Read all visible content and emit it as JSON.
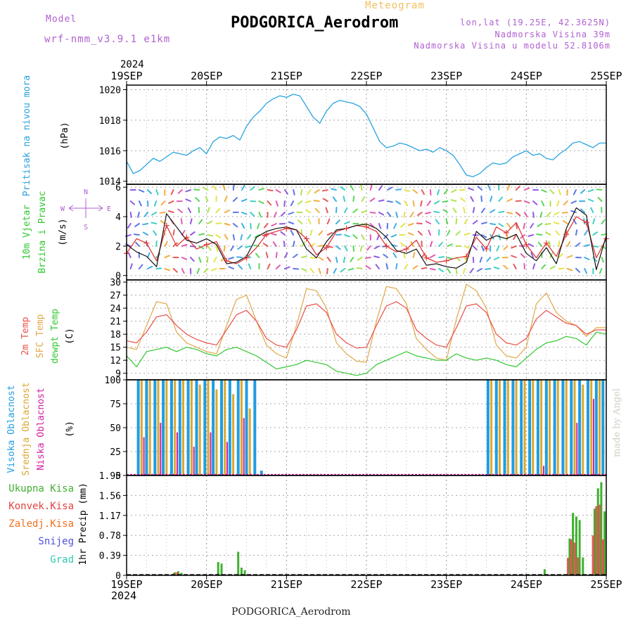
{
  "header": {
    "model_label": "Model",
    "model_name": "wrf-nmm_v3.9.1 e1km",
    "meteogram_label": "Meteogram",
    "station_title": "PODGORICA_Aerodrom",
    "lonlat": "lon,lat (19.25E, 42.3625N)",
    "elevation": "Nadmorska Visina 39m",
    "model_elevation": "Nadmorska Visina u modelu 52.8106m",
    "year": "2024",
    "credit": "made by Angel"
  },
  "footer": {
    "station": "PODGORICA_Aerodrom",
    "year": "2024"
  },
  "colors": {
    "pressure": "#29a3e0",
    "wind_speed": "#111111",
    "gust": "#e03a3a",
    "t2m": "#e8504a",
    "sfc": "#e0a848",
    "dew": "#30c830",
    "high_cloud": "#1f9de0",
    "mid_cloud": "#d9a830",
    "low_cloud": "#d020a0",
    "total_precip": "#40b030",
    "conv_precip": "#e04040",
    "frozen_precip": "#f07020",
    "snow": "#5050e0",
    "graupel": "#30c8b0"
  },
  "chart_data": [
    {
      "type": "line",
      "id": "pressure",
      "ylabel_lines": [
        "Pritisak na nivou mora",
        "(hPa)"
      ],
      "ylim": [
        1013.8,
        1020.3
      ],
      "yticks": [
        "1014",
        "1016",
        "1018",
        "1020"
      ],
      "xlim": [
        0,
        144
      ],
      "x_ticks": [
        "19SEP",
        "20SEP",
        "21SEP",
        "22SEP",
        "23SEP",
        "24SEP",
        "25SEP"
      ],
      "grid": true,
      "series": [
        {
          "x": [
            0,
            2,
            4,
            6,
            8,
            10,
            12,
            14,
            16,
            18,
            20,
            22,
            24,
            26,
            28,
            30,
            32,
            34,
            36,
            38,
            40,
            42,
            44,
            46,
            48,
            50,
            52,
            54,
            56,
            58,
            60,
            62,
            64,
            66,
            68,
            70,
            72,
            74,
            76,
            78,
            80,
            82,
            84,
            86,
            88,
            90,
            92,
            94,
            96,
            98,
            100,
            102,
            104,
            106,
            108,
            110,
            112,
            114,
            116,
            118,
            120,
            122,
            124,
            126,
            128,
            130,
            132,
            134,
            136,
            138,
            140,
            142,
            144
          ],
          "y": [
            1015.3,
            1014.5,
            1014.7,
            1015.1,
            1015.5,
            1015.3,
            1015.6,
            1015.9,
            1015.8,
            1015.7,
            1016.0,
            1016.2,
            1015.8,
            1016.6,
            1016.9,
            1016.8,
            1017.0,
            1016.7,
            1017.6,
            1018.2,
            1018.6,
            1019.1,
            1019.4,
            1019.6,
            1019.5,
            1019.7,
            1019.6,
            1018.9,
            1018.2,
            1017.8,
            1018.6,
            1019.1,
            1019.3,
            1019.2,
            1019.1,
            1018.9,
            1018.4,
            1017.5,
            1016.6,
            1016.2,
            1016.3,
            1016.5,
            1016.4,
            1016.2,
            1016.0,
            1016.1,
            1015.9,
            1016.2,
            1016.0,
            1015.7,
            1015.1,
            1014.4,
            1014.3,
            1014.5,
            1014.9,
            1015.2,
            1015.1,
            1015.2,
            1015.6,
            1015.8,
            1016.0,
            1015.7,
            1015.8,
            1015.5,
            1015.4,
            1015.8,
            1016.1,
            1016.5,
            1016.6,
            1016.4,
            1016.2,
            1016.5,
            1016.5
          ]
        }
      ]
    },
    {
      "type": "line",
      "id": "wind",
      "ylabel_lines": [
        "10m Vjetar",
        "Brzina i Pravac",
        "(m/s)"
      ],
      "compass": [
        "N",
        "W",
        "E",
        "S"
      ],
      "ylim": [
        -0.3,
        6.2
      ],
      "yticks": [
        "0",
        "2",
        "4",
        "6"
      ],
      "xlim": [
        0,
        144
      ],
      "grid": true,
      "series": [
        {
          "name": "",
          "x": [
            0,
            3,
            6,
            9,
            12,
            15,
            18,
            21,
            24,
            27,
            30,
            33,
            36,
            39,
            42,
            45,
            48,
            51,
            54,
            57,
            60,
            63,
            66,
            69,
            72,
            75,
            78,
            81,
            84,
            87,
            90,
            93,
            96,
            99,
            102,
            105,
            108,
            111,
            114,
            117,
            120,
            123,
            126,
            129,
            132,
            135,
            138,
            141,
            144
          ],
          "y": [
            1.5,
            2.5,
            2.2,
            1.0,
            3.4,
            2.0,
            2.6,
            1.8,
            2.1,
            2.3,
            1.0,
            0.8,
            1.2,
            1.9,
            2.8,
            3.0,
            3.2,
            3.1,
            2.5,
            1.4,
            1.9,
            3.0,
            3.2,
            3.4,
            3.3,
            3.0,
            2.0,
            1.6,
            1.8,
            2.4,
            1.2,
            0.9,
            1.0,
            1.2,
            1.3,
            2.6,
            1.8,
            3.3,
            2.9,
            3.6,
            2.1,
            1.2,
            2.2,
            1.3,
            2.8,
            4.0,
            3.6,
            1.2,
            2.5
          ]
        },
        {
          "name": "",
          "x": [
            0,
            3,
            6,
            9,
            12,
            15,
            18,
            21,
            24,
            27,
            30,
            33,
            36,
            39,
            42,
            45,
            48,
            51,
            54,
            57,
            60,
            63,
            66,
            69,
            72,
            75,
            78,
            81,
            84,
            87,
            90,
            93,
            96,
            99,
            102,
            105,
            108,
            111,
            114,
            117,
            120,
            123,
            126,
            129,
            132,
            135,
            138,
            141,
            144
          ],
          "y": [
            2.1,
            1.6,
            1.3,
            0.6,
            4.2,
            3.3,
            2.4,
            2.2,
            2.5,
            2.1,
            0.8,
            0.9,
            1.3,
            2.6,
            3.0,
            3.2,
            3.3,
            3.1,
            1.8,
            1.2,
            2.3,
            3.1,
            3.2,
            3.4,
            3.5,
            3.2,
            2.6,
            1.7,
            1.5,
            1.8,
            0.7,
            0.8,
            0.6,
            0.5,
            0.9,
            3.0,
            2.4,
            2.7,
            2.5,
            2.8,
            1.5,
            1.0,
            1.9,
            0.8,
            3.2,
            4.6,
            4.1,
            0.4,
            2.7
          ]
        }
      ]
    },
    {
      "type": "line",
      "id": "temperature",
      "ylabel_lines": [
        "2m Temp",
        "SFC Temp",
        "dewpt Temp",
        "(C)"
      ],
      "ylim": [
        7.5,
        30.5
      ],
      "yticks": [
        "9",
        "12",
        "15",
        "18",
        "21",
        "24",
        "27",
        "30"
      ],
      "xlim": [
        0,
        144
      ],
      "grid": true,
      "series": [
        {
          "name": "2m Temp",
          "x": [
            0,
            3,
            6,
            9,
            12,
            15,
            18,
            21,
            24,
            27,
            30,
            33,
            36,
            39,
            42,
            45,
            48,
            51,
            54,
            57,
            60,
            63,
            66,
            69,
            72,
            75,
            78,
            81,
            84,
            87,
            90,
            93,
            96,
            99,
            102,
            105,
            108,
            111,
            114,
            117,
            120,
            123,
            126,
            129,
            132,
            135,
            138,
            141,
            144
          ],
          "y": [
            16.5,
            16.0,
            18.5,
            22.0,
            22.5,
            20.0,
            18.0,
            16.8,
            16.0,
            15.5,
            19.0,
            22.5,
            23.5,
            21.0,
            17.0,
            15.5,
            15.0,
            19.0,
            24.5,
            25.0,
            23.0,
            18.0,
            16.0,
            14.8,
            15.0,
            20.0,
            24.5,
            25.5,
            24.0,
            19.0,
            17.0,
            15.5,
            15.0,
            19.5,
            24.5,
            25.0,
            23.0,
            18.0,
            16.0,
            15.5,
            17.0,
            21.5,
            23.5,
            22.0,
            20.5,
            20.0,
            18.0,
            19.0,
            19.0
          ]
        },
        {
          "name": "SFC Temp",
          "x": [
            0,
            3,
            6,
            9,
            12,
            15,
            18,
            21,
            24,
            27,
            30,
            33,
            36,
            39,
            42,
            45,
            48,
            51,
            54,
            57,
            60,
            63,
            66,
            69,
            72,
            75,
            78,
            81,
            84,
            87,
            90,
            93,
            96,
            99,
            102,
            105,
            108,
            111,
            114,
            117,
            120,
            123,
            126,
            129,
            132,
            135,
            138,
            141,
            144
          ],
          "y": [
            15.0,
            14.5,
            20.0,
            25.5,
            25.0,
            18.5,
            16.0,
            15.0,
            14.0,
            13.5,
            20.0,
            26.0,
            27.0,
            21.0,
            15.5,
            13.5,
            12.5,
            20.0,
            28.5,
            28.0,
            24.0,
            16.0,
            13.5,
            11.8,
            11.5,
            21.0,
            29.0,
            28.5,
            25.0,
            17.0,
            14.5,
            12.5,
            12.0,
            21.5,
            29.5,
            28.0,
            24.0,
            15.5,
            13.0,
            12.5,
            15.0,
            25.0,
            27.5,
            23.0,
            21.0,
            20.0,
            17.5,
            19.5,
            19.5
          ]
        },
        {
          "name": "dewpt Temp",
          "x": [
            0,
            3,
            6,
            9,
            12,
            15,
            18,
            21,
            24,
            27,
            30,
            33,
            36,
            39,
            42,
            45,
            48,
            51,
            54,
            57,
            60,
            63,
            66,
            69,
            72,
            75,
            78,
            81,
            84,
            87,
            90,
            93,
            96,
            99,
            102,
            105,
            108,
            111,
            114,
            117,
            120,
            123,
            126,
            129,
            132,
            135,
            138,
            141,
            144
          ],
          "y": [
            13.0,
            10.5,
            14.0,
            14.5,
            15.0,
            14.0,
            15.0,
            14.5,
            13.5,
            13.0,
            14.5,
            15.0,
            14.0,
            13.0,
            11.5,
            10.0,
            10.5,
            11.0,
            12.0,
            11.5,
            11.0,
            9.5,
            9.0,
            8.5,
            9.0,
            11.0,
            12.0,
            13.0,
            14.0,
            13.0,
            12.5,
            12.0,
            12.0,
            13.5,
            12.5,
            12.0,
            12.5,
            12.0,
            11.0,
            10.5,
            12.5,
            14.5,
            16.0,
            16.5,
            17.5,
            17.0,
            15.5,
            18.5,
            18.0
          ]
        }
      ]
    },
    {
      "type": "bar",
      "id": "clouds",
      "ylabel_lines": [
        "Visoka Oblacnost",
        "Srednja Oblacnost",
        "Niska Oblacnost",
        "(%)"
      ],
      "ylim": [
        0,
        100
      ],
      "yticks": [
        "0",
        "25",
        "50",
        "75",
        "100"
      ],
      "xlim": [
        0,
        144
      ],
      "grid": true,
      "series": [
        {
          "name": "Visoka Oblacnost",
          "x": [
            3.5,
            6.0,
            8.5,
            11.0,
            13.5,
            16.0,
            18.5,
            21.0,
            23.5,
            26.0,
            28.5,
            31.0,
            33.5,
            36.0,
            38.5,
            40.5,
            108.5,
            111.0,
            113.5,
            116.0,
            118.5,
            121.0,
            123.5,
            126.0,
            128.5,
            131.0,
            133.5,
            136.0,
            138.5,
            141.0,
            143.0
          ],
          "y": [
            100,
            100,
            100,
            100,
            100,
            100,
            100,
            100,
            100,
            100,
            100,
            100,
            100,
            100,
            100,
            5,
            100,
            100,
            100,
            100,
            100,
            100,
            100,
            100,
            100,
            100,
            100,
            100,
            100,
            100,
            100
          ]
        },
        {
          "name": "Srednja Oblacnost",
          "x": [
            4.5,
            7.0,
            9.5,
            12.0,
            14.5,
            17.0,
            19.5,
            22.0,
            24.5,
            27.0,
            29.5,
            32.0,
            34.5,
            37.0,
            109.5,
            112.0,
            114.5,
            117.0,
            119.5,
            122.0,
            124.5,
            127.0,
            129.5,
            132.0,
            134.5,
            137.0,
            139.5,
            142.0
          ],
          "y": [
            100,
            100,
            100,
            100,
            100,
            100,
            100,
            95,
            100,
            90,
            100,
            85,
            100,
            70,
            100,
            100,
            100,
            100,
            100,
            100,
            100,
            100,
            100,
            100,
            100,
            95,
            100,
            100
          ]
        },
        {
          "name": "Niska Oblacnost",
          "x": [
            5.2,
            10.2,
            15.2,
            20.2,
            25.2,
            30.2,
            35.2,
            115.2,
            120.2,
            125.2,
            130.2,
            135.2,
            140.2
          ],
          "y": [
            40,
            55,
            45,
            30,
            45,
            35,
            60,
            0,
            0,
            10,
            0,
            55,
            80
          ]
        }
      ]
    },
    {
      "type": "bar",
      "id": "precip",
      "ylabel_lines": [
        "1hr Precip (mm)"
      ],
      "legend": [
        "Ukupna Kisa",
        "Konvek.Kisa",
        "Zaledj.Kisa",
        "Snijeg",
        "Grad"
      ],
      "ylim": [
        0,
        1.95
      ],
      "yticks": [
        "0",
        "0.39",
        "0.78",
        "1.17",
        "1.56",
        "1.95"
      ],
      "xlim": [
        0,
        144
      ],
      "x_ticks": [
        "19SEP",
        "20SEP",
        "21SEP",
        "22SEP",
        "23SEP",
        "24SEP",
        "25SEP"
      ],
      "grid": true,
      "series": [
        {
          "name": "Ukupna Kisa",
          "x": [
            14.5,
            15.5,
            16.5,
            27.5,
            28.5,
            33.5,
            34.5,
            35.5,
            125.5,
            133.0,
            134.0,
            135.0,
            136.0,
            137.0,
            140.5,
            141.5,
            142.5,
            143.5
          ],
          "y": [
            0.06,
            0.08,
            0.05,
            0.26,
            0.23,
            0.46,
            0.15,
            0.1,
            0.12,
            0.72,
            1.22,
            1.15,
            1.08,
            0.35,
            1.3,
            1.7,
            1.82,
            1.25
          ]
        },
        {
          "name": "Konvek.Kisa",
          "x": [
            14.2,
            15.2,
            132.5,
            133.5,
            134.5,
            135.5,
            140.0,
            141.0,
            142.0,
            143.0
          ],
          "y": [
            0.04,
            0.06,
            0.34,
            0.7,
            0.64,
            0.35,
            0.78,
            1.35,
            1.38,
            0.7
          ]
        }
      ]
    }
  ]
}
